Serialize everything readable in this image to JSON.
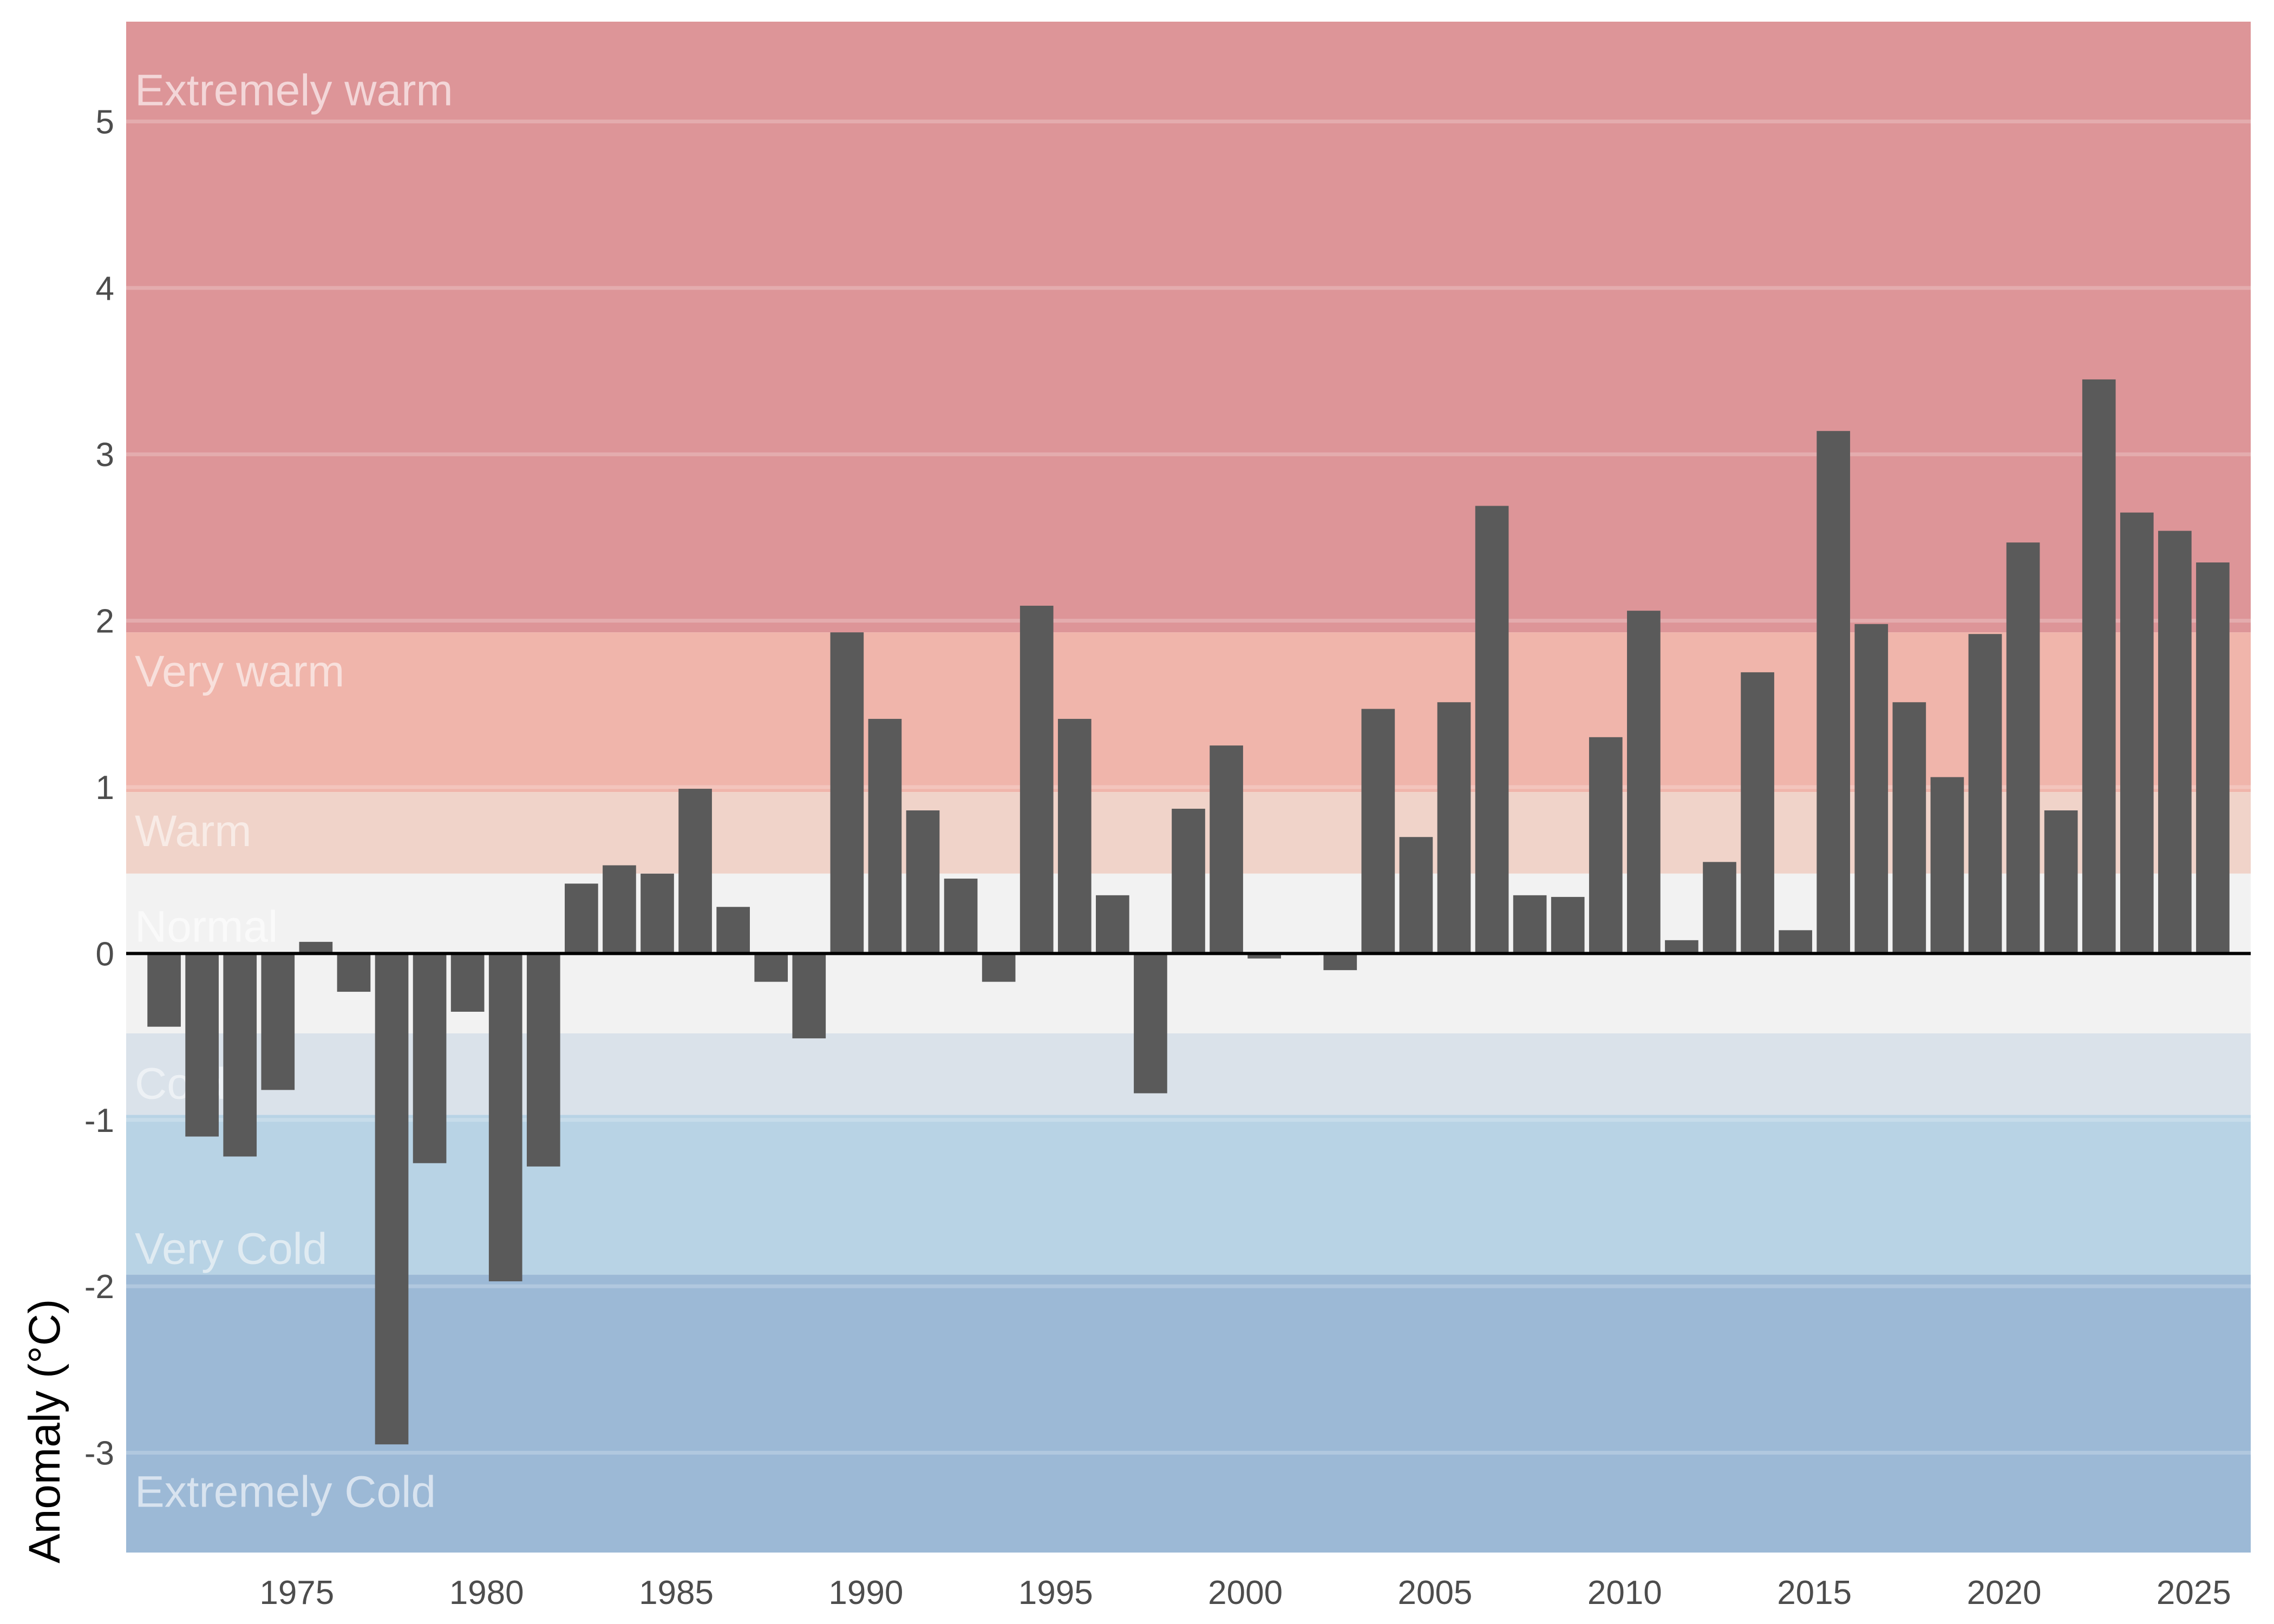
{
  "chart_data": {
    "type": "bar",
    "title": "",
    "xlabel": "",
    "ylabel": "Anomaly (°C)",
    "ylim": [
      -3.6,
      5.6
    ],
    "xlim": [
      1970.5,
      2026.5
    ],
    "grid": true,
    "legend": "none",
    "y_ticks": [
      -3,
      -2,
      -1,
      0,
      1,
      2,
      3,
      4,
      5
    ],
    "x_ticks": [
      1975,
      1980,
      1985,
      1990,
      1995,
      2000,
      2005,
      2010,
      2015,
      2020,
      2025
    ],
    "bar_color": "#5a5a5a",
    "zero_line_color": "#000000",
    "bands": [
      {
        "name": "Extremely warm",
        "from": 1.93,
        "to": 5.6,
        "color": "#dd9598",
        "label_color": "#f3d6d8"
      },
      {
        "name": "Very warm",
        "from": 0.97,
        "to": 1.93,
        "color": "#f0b5ab",
        "label_color": "#f8e0dc"
      },
      {
        "name": "Warm",
        "from": 0.48,
        "to": 0.97,
        "color": "#f0d3c9",
        "label_color": "#f8ebe6"
      },
      {
        "name": "Normal",
        "from": -0.48,
        "to": 0.48,
        "color": "#f2f2f2",
        "label_color": "#fafafa"
      },
      {
        "name": "Cold",
        "from": -0.97,
        "to": -0.48,
        "color": "#dae2ea",
        "label_color": "#edf1f5"
      },
      {
        "name": "Very Cold",
        "from": -1.93,
        "to": -0.97,
        "color": "#b8d3e5",
        "label_color": "#e0ebf2"
      },
      {
        "name": "Extremely Cold",
        "from": -3.6,
        "to": -1.93,
        "color": "#9cb9d6",
        "label_color": "#d8e3ef"
      }
    ],
    "categories": [
      1971,
      1972,
      1973,
      1974,
      1975,
      1976,
      1977,
      1978,
      1979,
      1980,
      1981,
      1982,
      1983,
      1984,
      1985,
      1986,
      1987,
      1988,
      1989,
      1990,
      1991,
      1992,
      1993,
      1994,
      1995,
      1996,
      1997,
      1998,
      1999,
      2000,
      2001,
      2002,
      2003,
      2004,
      2005,
      2006,
      2007,
      2008,
      2009,
      2010,
      2011,
      2012,
      2013,
      2014,
      2015,
      2016,
      2017,
      2018,
      2019,
      2020,
      2021,
      2022,
      2023,
      2024,
      2025
    ],
    "values": [
      -0.44,
      -1.1,
      -1.22,
      -0.82,
      0.07,
      -0.23,
      -2.95,
      -1.26,
      -0.35,
      -1.97,
      -1.28,
      0.42,
      0.53,
      0.48,
      0.99,
      0.28,
      -0.17,
      -0.51,
      1.93,
      1.41,
      0.86,
      0.45,
      -0.17,
      2.09,
      1.41,
      0.35,
      -0.84,
      0.87,
      1.25,
      -0.03,
      -0.01,
      -0.1,
      1.47,
      0.7,
      1.51,
      2.69,
      0.35,
      0.34,
      1.3,
      2.06,
      0.08,
      0.55,
      1.69,
      0.14,
      3.14,
      1.98,
      1.51,
      1.06,
      1.92,
      2.47,
      0.86,
      3.45,
      2.65,
      2.54,
      2.35
    ]
  }
}
